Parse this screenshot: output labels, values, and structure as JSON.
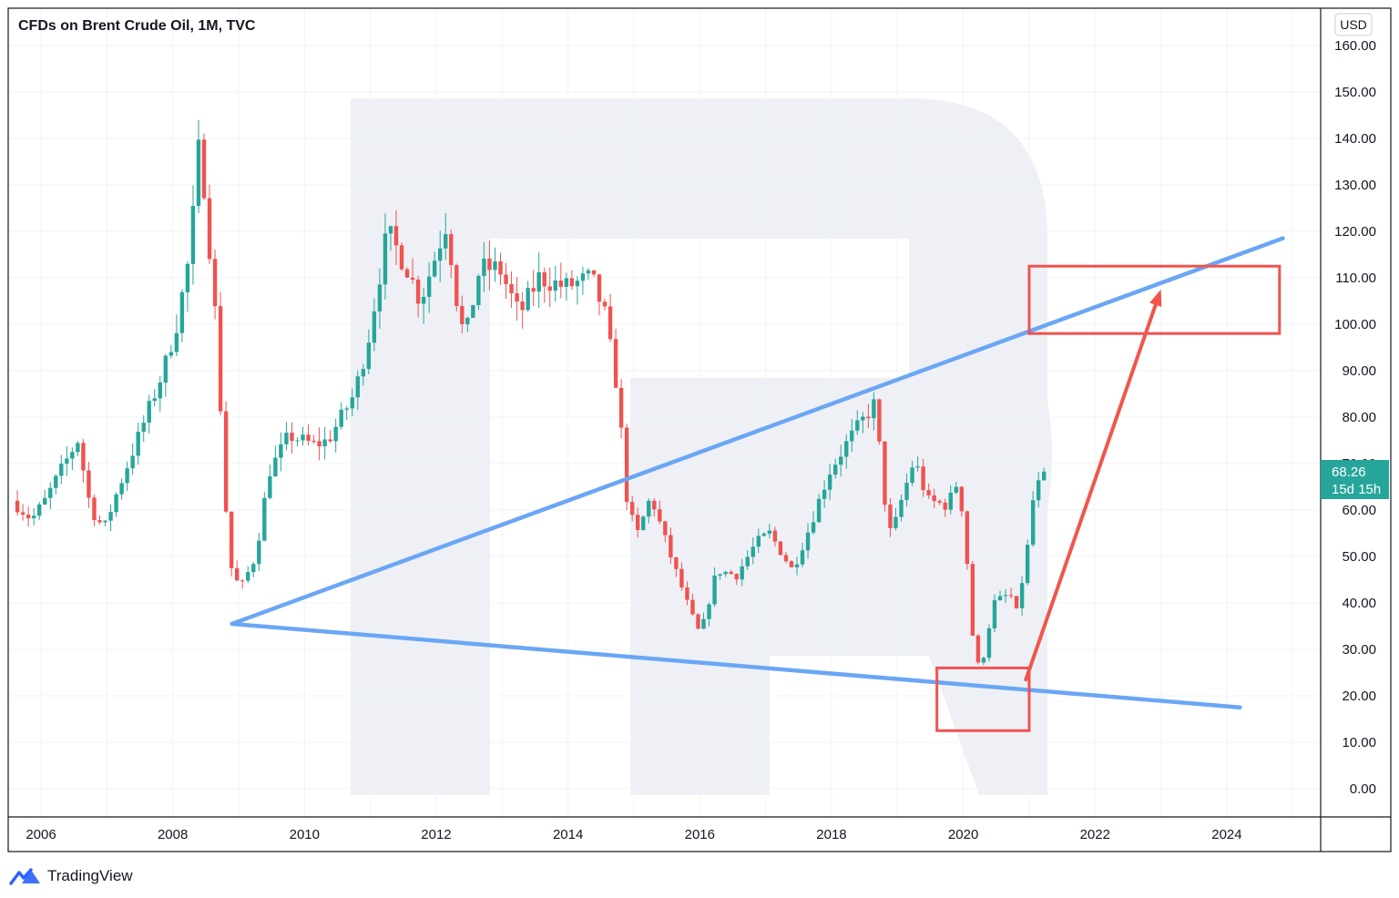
{
  "header": {
    "title": "CFDs on Brent Crude Oil, 1M, TVC",
    "currency_badge": "USD"
  },
  "price_label": {
    "price": "68.26",
    "countdown": "15d 15h",
    "color": "#26a69a"
  },
  "footer": {
    "brand": "TradingView"
  },
  "colors": {
    "up": "#26a69a",
    "down": "#ef5350",
    "trendline": "#6aa6f4",
    "box": "#ef5350",
    "arrow": "#f0564b",
    "watermark": "#eef0f5",
    "grid": "#f0f3fa"
  },
  "chart_data": {
    "type": "candlestick",
    "title": "CFDs on Brent Crude Oil, 1M, TVC",
    "interval": "1M",
    "currency": "USD",
    "y_ticks": [
      0,
      10,
      20,
      30,
      40,
      50,
      60,
      70,
      80,
      90,
      100,
      110,
      120,
      130,
      140,
      150,
      160
    ],
    "y_tick_labels": [
      "0.00",
      "10.00",
      "20.00",
      "30.00",
      "40.00",
      "50.00",
      "60.00",
      "70.00",
      "80.00",
      "90.00",
      "100.00",
      "110.00",
      "120.00",
      "130.00",
      "140.00",
      "150.00",
      "160.00"
    ],
    "x_ticks": [
      2006,
      2008,
      2010,
      2012,
      2014,
      2016,
      2018,
      2020,
      2022,
      2024
    ],
    "x_tick_labels": [
      "2006",
      "2008",
      "2010",
      "2012",
      "2014",
      "2016",
      "2018",
      "2020",
      "2022",
      "2024"
    ],
    "xlim": [
      2005.55,
      2025.5
    ],
    "ylim": [
      -4,
      163
    ],
    "grid": true,
    "anchors": [
      {
        "t": 2005.6,
        "p": 62
      },
      {
        "t": 2005.9,
        "p": 58
      },
      {
        "t": 2006.1,
        "p": 62
      },
      {
        "t": 2006.4,
        "p": 70
      },
      {
        "t": 2006.6,
        "p": 75
      },
      {
        "t": 2006.8,
        "p": 60
      },
      {
        "t": 2007.0,
        "p": 56
      },
      {
        "t": 2007.2,
        "p": 64
      },
      {
        "t": 2007.5,
        "p": 75
      },
      {
        "t": 2007.9,
        "p": 90
      },
      {
        "t": 2008.1,
        "p": 100
      },
      {
        "t": 2008.3,
        "p": 115
      },
      {
        "t": 2008.45,
        "p": 140
      },
      {
        "t": 2008.55,
        "p": 125
      },
      {
        "t": 2008.7,
        "p": 100
      },
      {
        "t": 2008.85,
        "p": 60
      },
      {
        "t": 2008.95,
        "p": 45
      },
      {
        "t": 2009.1,
        "p": 44
      },
      {
        "t": 2009.3,
        "p": 50
      },
      {
        "t": 2009.5,
        "p": 68
      },
      {
        "t": 2009.8,
        "p": 76
      },
      {
        "t": 2010.2,
        "p": 74
      },
      {
        "t": 2010.4,
        "p": 75
      },
      {
        "t": 2010.8,
        "p": 85
      },
      {
        "t": 2011.0,
        "p": 96
      },
      {
        "t": 2011.3,
        "p": 120
      },
      {
        "t": 2011.6,
        "p": 112
      },
      {
        "t": 2011.8,
        "p": 105
      },
      {
        "t": 2012.2,
        "p": 122
      },
      {
        "t": 2012.4,
        "p": 100
      },
      {
        "t": 2012.5,
        "p": 98
      },
      {
        "t": 2012.7,
        "p": 112
      },
      {
        "t": 2013.0,
        "p": 112
      },
      {
        "t": 2013.3,
        "p": 102
      },
      {
        "t": 2013.6,
        "p": 110
      },
      {
        "t": 2014.0,
        "p": 108
      },
      {
        "t": 2014.4,
        "p": 110
      },
      {
        "t": 2014.6,
        "p": 102
      },
      {
        "t": 2014.8,
        "p": 85
      },
      {
        "t": 2014.95,
        "p": 60
      },
      {
        "t": 2015.1,
        "p": 55
      },
      {
        "t": 2015.3,
        "p": 63
      },
      {
        "t": 2015.6,
        "p": 50
      },
      {
        "t": 2015.9,
        "p": 38
      },
      {
        "t": 2016.05,
        "p": 33
      },
      {
        "t": 2016.3,
        "p": 47
      },
      {
        "t": 2016.6,
        "p": 46
      },
      {
        "t": 2016.9,
        "p": 53
      },
      {
        "t": 2017.1,
        "p": 55
      },
      {
        "t": 2017.45,
        "p": 47
      },
      {
        "t": 2017.7,
        "p": 56
      },
      {
        "t": 2018.0,
        "p": 68
      },
      {
        "t": 2018.3,
        "p": 75
      },
      {
        "t": 2018.7,
        "p": 83
      },
      {
        "t": 2018.85,
        "p": 62
      },
      {
        "t": 2018.95,
        "p": 54
      },
      {
        "t": 2019.1,
        "p": 62
      },
      {
        "t": 2019.3,
        "p": 71
      },
      {
        "t": 2019.5,
        "p": 62
      },
      {
        "t": 2019.8,
        "p": 61
      },
      {
        "t": 2019.95,
        "p": 66
      },
      {
        "t": 2020.05,
        "p": 58
      },
      {
        "t": 2020.2,
        "p": 30
      },
      {
        "t": 2020.3,
        "p": 25
      },
      {
        "t": 2020.5,
        "p": 40
      },
      {
        "t": 2020.75,
        "p": 42
      },
      {
        "t": 2020.85,
        "p": 38
      },
      {
        "t": 2021.0,
        "p": 50
      },
      {
        "t": 2021.1,
        "p": 62
      },
      {
        "t": 2021.25,
        "p": 68.26
      }
    ],
    "trendlines": [
      {
        "name": "resistance",
        "from": [
          2008.9,
          35.5
        ],
        "to": [
          2024.85,
          118.5
        ]
      },
      {
        "name": "support",
        "from": [
          2008.9,
          35.5
        ],
        "to": [
          2024.2,
          17.5
        ]
      }
    ],
    "boxes": [
      {
        "name": "current-zone",
        "t": [
          2019.6,
          2021.0
        ],
        "p": [
          12.5,
          26
        ]
      },
      {
        "name": "target-zone",
        "t": [
          2021.0,
          2024.8
        ],
        "p": [
          98,
          112.5
        ]
      }
    ],
    "arrow": {
      "from": [
        2020.95,
        23.5
      ],
      "to": [
        2023.0,
        107.5
      ]
    },
    "last_price": 68.26
  }
}
